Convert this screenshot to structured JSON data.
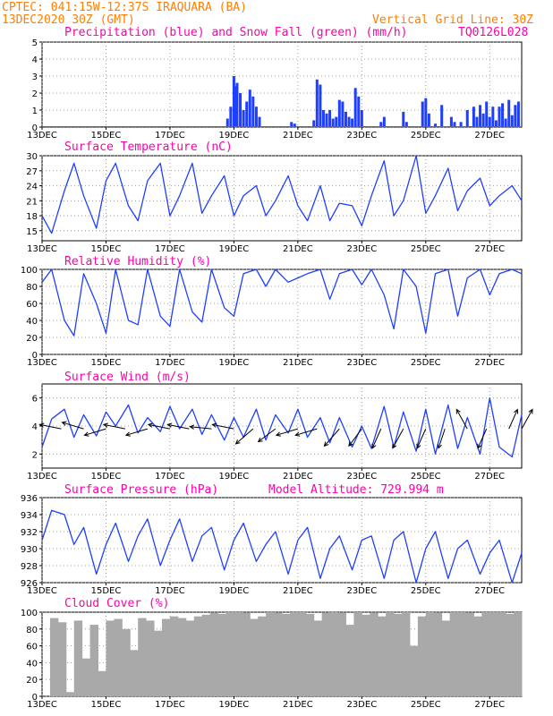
{
  "header": {
    "line1": "CPTEC:  041:15W-12:37S  IRAQUARA (BA)",
    "line2": "13DEC2020 30Z (GMT)",
    "grid_note": "Vertical Grid Line: 30Z",
    "code": "TQ0126L028"
  },
  "colors": {
    "header": "#ff7f00",
    "title": "#ff00aa",
    "line": "#1f3fff",
    "cloud": "#a9a9a9",
    "snow": "#00aa00"
  },
  "x_axis": {
    "start_day": 13,
    "end_day": 28,
    "tick_labels": [
      "13DEC",
      "15DEC",
      "17DEC",
      "19DEC",
      "21DEC",
      "23DEC",
      "25DEC",
      "27DEC"
    ],
    "tick_days": [
      13,
      15,
      17,
      19,
      21,
      23,
      25,
      27
    ]
  },
  "chart_data": [
    {
      "id": "precip",
      "type": "bar",
      "title": "Precipitation (blue) and Snow Fall (green) (mm/h)",
      "ylim": [
        0,
        5
      ],
      "yticks": [
        0,
        1,
        2,
        3,
        4,
        5
      ],
      "series": [
        {
          "name": "Precipitation",
          "color": "#1f3fff",
          "x": [
            18.8,
            18.9,
            19.0,
            19.05,
            19.1,
            19.2,
            19.3,
            19.4,
            19.5,
            19.6,
            19.7,
            19.8,
            20.8,
            20.9,
            21.5,
            21.6,
            21.7,
            21.8,
            21.9,
            22.0,
            22.1,
            22.2,
            22.3,
            22.4,
            22.5,
            22.6,
            22.7,
            22.8,
            22.9,
            23.0,
            23.6,
            23.7,
            24.3,
            24.4,
            24.9,
            25.0,
            25.1,
            25.3,
            25.5,
            25.8,
            25.9,
            26.1,
            26.3,
            26.5,
            26.6,
            26.7,
            26.8,
            26.9,
            27.0,
            27.1,
            27.2,
            27.3,
            27.4,
            27.5,
            27.6,
            27.7,
            27.8,
            27.9
          ],
          "values": [
            0.5,
            1.2,
            3.0,
            2.4,
            2.6,
            2.0,
            1.0,
            1.5,
            2.2,
            1.8,
            1.2,
            0.6,
            0.3,
            0.2,
            0.4,
            2.8,
            2.5,
            1.0,
            0.8,
            1.0,
            0.5,
            0.6,
            1.6,
            1.5,
            0.9,
            0.6,
            0.5,
            2.3,
            1.8,
            1.0,
            0.3,
            0.6,
            0.9,
            0.3,
            1.5,
            1.7,
            0.8,
            0.2,
            1.3,
            0.6,
            0.3,
            0.3,
            1.0,
            1.2,
            0.6,
            1.3,
            0.8,
            1.5,
            0.6,
            1.2,
            0.4,
            1.2,
            1.4,
            0.5,
            1.6,
            0.7,
            1.3,
            1.5
          ]
        }
      ]
    },
    {
      "id": "temp",
      "type": "line",
      "title": "Surface Temperature (nC)",
      "ylim": [
        13,
        30
      ],
      "yticks": [
        15,
        18,
        21,
        24,
        27,
        30
      ],
      "series": [
        {
          "name": "Temperature",
          "color": "#1f3fff",
          "x": [
            13.0,
            13.3,
            13.7,
            14.0,
            14.3,
            14.7,
            15.0,
            15.3,
            15.7,
            16.0,
            16.3,
            16.7,
            17.0,
            17.3,
            17.7,
            18.0,
            18.3,
            18.7,
            19.0,
            19.3,
            19.7,
            20.0,
            20.3,
            20.7,
            21.0,
            21.3,
            21.7,
            22.0,
            22.3,
            22.7,
            23.0,
            23.3,
            23.7,
            24.0,
            24.3,
            24.7,
            25.0,
            25.3,
            25.7,
            26.0,
            26.3,
            26.7,
            27.0,
            27.3,
            27.7,
            28.0
          ],
          "values": [
            18,
            14.5,
            23,
            28.5,
            22,
            15.5,
            25,
            28.5,
            20,
            17,
            25,
            28.5,
            18,
            22,
            28.5,
            18.5,
            22,
            26,
            18,
            22,
            24,
            18,
            21,
            26,
            20,
            17,
            24,
            17,
            20.5,
            20,
            16,
            22,
            29,
            18,
            21,
            30,
            18.5,
            22,
            27.5,
            19,
            23,
            25.5,
            20,
            22,
            24,
            21
          ]
        }
      ]
    },
    {
      "id": "rh",
      "type": "line",
      "title": "Relative Humidity (%)",
      "ylim": [
        0,
        100
      ],
      "yticks": [
        0,
        20,
        40,
        60,
        80,
        100
      ],
      "series": [
        {
          "name": "Relative Humidity",
          "color": "#1f3fff",
          "x": [
            13.0,
            13.3,
            13.7,
            14.0,
            14.3,
            14.7,
            15.0,
            15.3,
            15.7,
            16.0,
            16.3,
            16.7,
            17.0,
            17.3,
            17.7,
            18.0,
            18.3,
            18.7,
            19.0,
            19.3,
            19.7,
            20.0,
            20.3,
            20.7,
            21.0,
            21.3,
            21.7,
            22.0,
            22.3,
            22.7,
            23.0,
            23.3,
            23.7,
            24.0,
            24.3,
            24.7,
            25.0,
            25.3,
            25.7,
            26.0,
            26.3,
            26.7,
            27.0,
            27.3,
            27.7,
            28.0
          ],
          "values": [
            85,
            100,
            40,
            22,
            95,
            60,
            25,
            100,
            40,
            35,
            100,
            45,
            33,
            100,
            50,
            38,
            100,
            55,
            45,
            95,
            100,
            80,
            100,
            85,
            90,
            95,
            100,
            65,
            95,
            100,
            82,
            100,
            70,
            30,
            100,
            80,
            25,
            95,
            100,
            45,
            90,
            100,
            70,
            95,
            100,
            95
          ]
        }
      ]
    },
    {
      "id": "wind",
      "type": "line",
      "title": "Surface Wind (m/s)",
      "ylim": [
        1,
        7
      ],
      "yticks": [
        2,
        4,
        6
      ],
      "series": [
        {
          "name": "Wind speed",
          "color": "#1f3fff",
          "x": [
            13.0,
            13.3,
            13.7,
            14.0,
            14.3,
            14.7,
            15.0,
            15.3,
            15.7,
            16.0,
            16.3,
            16.7,
            17.0,
            17.3,
            17.7,
            18.0,
            18.3,
            18.7,
            19.0,
            19.3,
            19.7,
            20.0,
            20.3,
            20.7,
            21.0,
            21.3,
            21.7,
            22.0,
            22.3,
            22.7,
            23.0,
            23.3,
            23.7,
            24.0,
            24.3,
            24.7,
            25.0,
            25.3,
            25.7,
            26.0,
            26.3,
            26.7,
            27.0,
            27.3,
            27.7,
            28.0
          ],
          "values": [
            2.5,
            4.5,
            5.2,
            3.2,
            4.8,
            3.3,
            5.0,
            4.0,
            5.5,
            3.5,
            4.6,
            3.6,
            5.4,
            3.8,
            5.2,
            3.4,
            4.8,
            3.0,
            4.6,
            3.2,
            5.2,
            3.0,
            4.8,
            3.5,
            5.2,
            3.2,
            4.6,
            2.8,
            4.6,
            2.5,
            4.0,
            2.4,
            5.4,
            2.5,
            5.0,
            2.2,
            5.2,
            2.0,
            5.5,
            2.4,
            4.6,
            2.0,
            6.0,
            2.5,
            1.8,
            4.8
          ]
        }
      ],
      "vectors": [
        {
          "x": 13.6,
          "u": -1.0,
          "v": 0.2
        },
        {
          "x": 14.3,
          "u": -1.0,
          "v": 0.3
        },
        {
          "x": 15.0,
          "u": -1.0,
          "v": -0.3
        },
        {
          "x": 15.6,
          "u": -1.0,
          "v": 0.2
        },
        {
          "x": 16.3,
          "u": -1.0,
          "v": -0.3
        },
        {
          "x": 17.0,
          "u": -1.0,
          "v": 0.2
        },
        {
          "x": 17.6,
          "u": -1.0,
          "v": 0.2
        },
        {
          "x": 18.3,
          "u": -1.0,
          "v": 0.1
        },
        {
          "x": 19.0,
          "u": -1.0,
          "v": 0.2
        },
        {
          "x": 19.6,
          "u": -0.8,
          "v": -0.7
        },
        {
          "x": 20.3,
          "u": -0.8,
          "v": -0.6
        },
        {
          "x": 21.0,
          "u": -1.0,
          "v": -0.3
        },
        {
          "x": 21.6,
          "u": -1.0,
          "v": -0.3
        },
        {
          "x": 22.3,
          "u": -0.7,
          "v": -0.8
        },
        {
          "x": 23.0,
          "u": -0.6,
          "v": -0.8
        },
        {
          "x": 23.6,
          "u": -0.4,
          "v": -0.9
        },
        {
          "x": 24.3,
          "u": -0.5,
          "v": -0.9
        },
        {
          "x": 25.0,
          "u": -0.4,
          "v": -0.9
        },
        {
          "x": 25.6,
          "u": -0.3,
          "v": -0.9
        },
        {
          "x": 26.3,
          "u": -0.5,
          "v": 0.9
        },
        {
          "x": 26.9,
          "u": -0.4,
          "v": -0.9
        },
        {
          "x": 27.6,
          "u": 0.4,
          "v": 0.9
        },
        {
          "x": 28.0,
          "u": 0.5,
          "v": 0.9
        }
      ]
    },
    {
      "id": "press",
      "type": "line",
      "title": "Surface Pressure (hPa)",
      "annotation": "Model Altitude: 729.994  m",
      "ylim": [
        926,
        936
      ],
      "yticks": [
        926,
        928,
        930,
        932,
        934,
        936
      ],
      "series": [
        {
          "name": "Pressure",
          "color": "#1f3fff",
          "x": [
            13.0,
            13.3,
            13.7,
            14.0,
            14.3,
            14.7,
            15.0,
            15.3,
            15.7,
            16.0,
            16.3,
            16.7,
            17.0,
            17.3,
            17.7,
            18.0,
            18.3,
            18.7,
            19.0,
            19.3,
            19.7,
            20.0,
            20.3,
            20.7,
            21.0,
            21.3,
            21.7,
            22.0,
            22.3,
            22.7,
            23.0,
            23.3,
            23.7,
            24.0,
            24.3,
            24.7,
            25.0,
            25.3,
            25.7,
            26.0,
            26.3,
            26.7,
            27.0,
            27.3,
            27.7,
            28.0
          ],
          "values": [
            931,
            934.5,
            934,
            930.5,
            932.5,
            927,
            930.5,
            933,
            928.5,
            931.5,
            933.5,
            928,
            931,
            933.5,
            928.5,
            931.5,
            932.5,
            927.5,
            931,
            933,
            928.5,
            930.5,
            932,
            927,
            931,
            932.5,
            926.5,
            930,
            931.5,
            927.5,
            931,
            931.5,
            926.5,
            931,
            932,
            926,
            930,
            932,
            926.5,
            930,
            931,
            927,
            929.5,
            931,
            926,
            929.5
          ]
        }
      ]
    },
    {
      "id": "cloud",
      "type": "bar",
      "title": "Cloud Cover (%)",
      "ylim": [
        0,
        100
      ],
      "yticks": [
        0,
        20,
        40,
        60,
        80,
        100
      ],
      "series": [
        {
          "name": "Cloud Cover",
          "color": "#a9a9a9",
          "x": [
            13.0,
            13.25,
            13.5,
            13.75,
            14.0,
            14.25,
            14.5,
            14.75,
            15.0,
            15.25,
            15.5,
            15.75,
            16.0,
            16.25,
            16.5,
            16.75,
            17.0,
            17.25,
            17.5,
            17.75,
            18.0,
            18.25,
            18.5,
            18.75,
            19.0,
            19.25,
            19.5,
            19.75,
            20.0,
            20.25,
            20.5,
            20.75,
            21.0,
            21.25,
            21.5,
            21.75,
            22.0,
            22.25,
            22.5,
            22.75,
            23.0,
            23.25,
            23.5,
            23.75,
            24.0,
            24.25,
            24.5,
            24.75,
            25.0,
            25.25,
            25.5,
            25.75,
            26.0,
            26.25,
            26.5,
            26.75,
            27.0,
            27.25,
            27.5,
            27.75
          ],
          "values": [
            0,
            93,
            88,
            5,
            90,
            45,
            85,
            30,
            90,
            92,
            80,
            55,
            93,
            90,
            78,
            92,
            95,
            93,
            90,
            95,
            97,
            99,
            98,
            100,
            100,
            99,
            92,
            95,
            100,
            99,
            98,
            100,
            100,
            98,
            90,
            99,
            100,
            99,
            85,
            100,
            97,
            99,
            95,
            100,
            98,
            100,
            60,
            95,
            100,
            99,
            90,
            100,
            100,
            99,
            95,
            100,
            100,
            100,
            98,
            100
          ]
        }
      ]
    }
  ]
}
